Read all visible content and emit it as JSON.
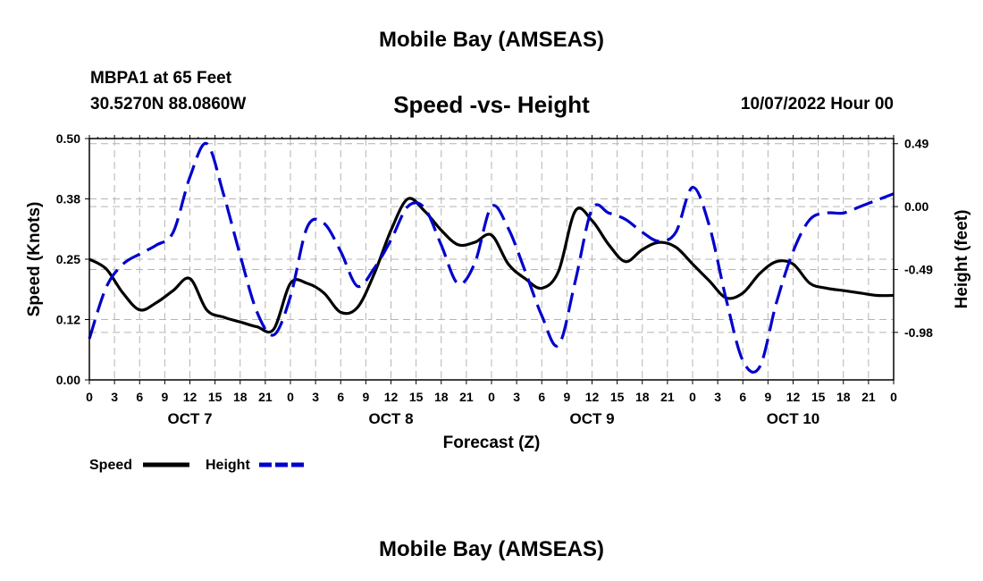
{
  "header": {
    "title": "Mobile Bay (AMSEAS)",
    "station": "MBPA1 at 65 Feet",
    "coords": "30.5270N  88.0860W",
    "subtitle": "Speed -vs- Height",
    "datetime": "10/07/2022 Hour 00"
  },
  "footer": {
    "title": "Mobile Bay (AMSEAS)"
  },
  "chart_data": {
    "type": "line",
    "title": "Speed -vs- Height",
    "xlabel": "Forecast (Z)",
    "ylabel": "Speed (Knots)",
    "y2label": "Height (feet)",
    "xlim": [
      0,
      96
    ],
    "ylim": [
      0,
      0.5
    ],
    "y2lim": [
      -1.35,
      0.53
    ],
    "yticks": [
      "0.00",
      "0.12",
      "0.25",
      "0.38",
      "0.50"
    ],
    "y2ticks": [
      "-0.98",
      "-0.49",
      "0.00",
      "0.49"
    ],
    "xticks": [
      "0",
      "3",
      "6",
      "9",
      "12",
      "15",
      "18",
      "21",
      "0",
      "3",
      "6",
      "9",
      "12",
      "15",
      "18",
      "21",
      "0",
      "3",
      "6",
      "9",
      "12",
      "15",
      "18",
      "21",
      "0",
      "3",
      "6",
      "9",
      "12",
      "15",
      "18",
      "21",
      "0"
    ],
    "day_labels": [
      "OCT 7",
      "OCT 8",
      "OCT 9",
      "OCT 10"
    ],
    "series": [
      {
        "name": "Speed",
        "color": "#000000",
        "style": "solid",
        "axis": "left",
        "x": [
          0,
          2,
          4,
          6,
          8,
          10,
          12,
          14,
          16,
          18,
          20,
          22,
          24,
          26,
          28,
          30,
          32,
          34,
          36,
          38,
          40,
          42,
          44,
          46,
          48,
          50,
          52,
          54,
          56,
          58,
          60,
          62,
          64,
          66,
          68,
          70,
          72,
          74,
          76,
          78,
          80,
          82,
          84,
          86,
          88,
          90,
          92,
          94,
          96
        ],
        "values": [
          0.25,
          0.23,
          0.18,
          0.145,
          0.16,
          0.185,
          0.21,
          0.145,
          0.13,
          0.12,
          0.11,
          0.105,
          0.2,
          0.2,
          0.18,
          0.14,
          0.15,
          0.22,
          0.31,
          0.375,
          0.35,
          0.31,
          0.28,
          0.285,
          0.3,
          0.24,
          0.21,
          0.19,
          0.225,
          0.35,
          0.33,
          0.28,
          0.245,
          0.27,
          0.285,
          0.275,
          0.24,
          0.205,
          0.17,
          0.18,
          0.22,
          0.245,
          0.24,
          0.2,
          0.19,
          0.185,
          0.18,
          0.175,
          0.175
        ]
      },
      {
        "name": "Height",
        "color": "#0000cc",
        "style": "dashed",
        "axis": "right",
        "x": [
          0,
          2,
          4,
          6,
          8,
          10,
          12,
          14,
          16,
          18,
          20,
          22,
          24,
          26,
          28,
          30,
          32,
          34,
          36,
          38,
          40,
          42,
          44,
          46,
          48,
          50,
          52,
          54,
          56,
          58,
          60,
          62,
          64,
          66,
          68,
          70,
          72,
          74,
          76,
          78,
          80,
          82,
          84,
          86,
          88,
          90,
          92,
          94,
          96
        ],
        "values": [
          -1.03,
          -0.63,
          -0.45,
          -0.37,
          -0.3,
          -0.2,
          0.23,
          0.49,
          0.1,
          -0.38,
          -0.82,
          -1.0,
          -0.7,
          -0.16,
          -0.13,
          -0.35,
          -0.62,
          -0.48,
          -0.26,
          0.0,
          -0.01,
          -0.3,
          -0.6,
          -0.44,
          0.0,
          -0.17,
          -0.5,
          -0.85,
          -1.08,
          -0.58,
          -0.02,
          -0.05,
          -0.1,
          -0.2,
          -0.27,
          -0.2,
          0.15,
          -0.15,
          -0.72,
          -1.2,
          -1.25,
          -0.75,
          -0.35,
          -0.1,
          -0.05,
          -0.05,
          0.0,
          0.05,
          0.1
        ]
      }
    ],
    "legend": [
      {
        "label": "Speed",
        "color": "#000000",
        "style": "solid"
      },
      {
        "label": "Height",
        "color": "#0000cc",
        "style": "dashed"
      }
    ]
  }
}
